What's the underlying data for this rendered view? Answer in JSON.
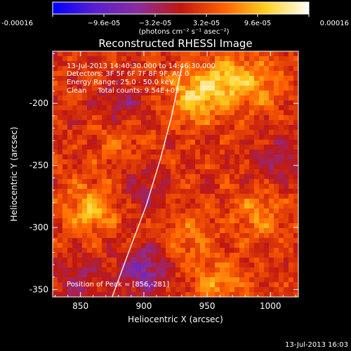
{
  "colorbar": {
    "min": -0.00016,
    "max": 0.00016,
    "tick_labels": [
      "-0.00016",
      "−9.6e-05",
      "−3.2e-05",
      "3.2e-05",
      "9.6e-05",
      "0.00016"
    ],
    "units": "(photons cm⁻² s⁻¹ asec⁻²)",
    "colormap": [
      "#0000ff",
      "#5a1fd0",
      "#8a2c9c",
      "#c01810",
      "#ff6000",
      "#ffd020",
      "#ffffff"
    ]
  },
  "chart_data": {
    "type": "heatmap",
    "title": "Reconstructed RHESSI Image",
    "xlabel": "Heliocentric X (arcsec)",
    "ylabel": "Heliocentric Y (arcsec)",
    "xlim": [
      828,
      1022
    ],
    "ylim": [
      -356,
      -158
    ],
    "xticks": [
      850,
      900,
      950,
      1000
    ],
    "yticks": [
      -200,
      -250,
      -300,
      -350
    ],
    "annotations": [
      "13-Jul-2013 14:40:30.000 to 14:46:30.000",
      "Detectors: 3F 5F 6F 7F 8F 9F, Att 0",
      "Energy Range: 25.0 - 50.0 keV",
      "Clean     Total counts: 9.54E+03"
    ],
    "peak_label": "Position of Peak = [856,-281]",
    "peak": [
      856,
      -281
    ],
    "limb_arc": [
      [
        875,
        -356
      ],
      [
        888,
        -320
      ],
      [
        902,
        -282
      ],
      [
        913,
        -245
      ],
      [
        922,
        -210
      ],
      [
        930,
        -170
      ]
    ],
    "bright_regions": [
      {
        "x": 940,
        "y": -195,
        "intensity": 1.0
      },
      {
        "x": 965,
        "y": -180,
        "intensity": 0.8
      },
      {
        "x": 990,
        "y": -185,
        "intensity": 0.6
      },
      {
        "x": 858,
        "y": -285,
        "intensity": 0.85
      },
      {
        "x": 880,
        "y": -225,
        "intensity": 0.5
      },
      {
        "x": 990,
        "y": -290,
        "intensity": 0.55
      },
      {
        "x": 960,
        "y": -345,
        "intensity": 0.6
      },
      {
        "x": 935,
        "y": -310,
        "intensity": 0.45
      }
    ],
    "dim_regions": [
      {
        "x": 900,
        "y": -335,
        "intensity": -0.9
      },
      {
        "x": 880,
        "y": -205,
        "intensity": -0.6
      },
      {
        "x": 1005,
        "y": -245,
        "intensity": -0.5
      },
      {
        "x": 900,
        "y": -270,
        "intensity": -0.4
      },
      {
        "x": 850,
        "y": -345,
        "intensity": -0.5
      }
    ]
  },
  "footer": {
    "timestamp": "13-Jul-2013 16:03"
  }
}
